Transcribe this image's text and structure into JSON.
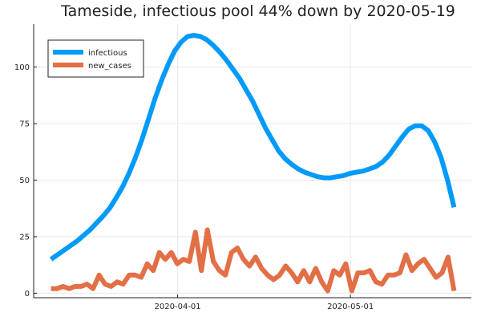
{
  "chart_data": {
    "type": "line",
    "title": "Tameside, infectious pool 44% down by 2020-05-19",
    "xlabel": "",
    "ylabel": "",
    "x_start": "2020-03-10",
    "x_end": "2020-05-19",
    "xlim": [
      "2020-03-07",
      "2020-05-22"
    ],
    "ylim": [
      -2,
      119
    ],
    "x_ticks": [
      {
        "date": "2020-04-01",
        "label": "2020-04-01"
      },
      {
        "date": "2020-05-01",
        "label": "2020-05-01"
      }
    ],
    "y_ticks": [
      {
        "value": 0,
        "label": "0"
      },
      {
        "value": 25,
        "label": "25"
      },
      {
        "value": 50,
        "label": "50"
      },
      {
        "value": 75,
        "label": "75"
      },
      {
        "value": 100,
        "label": "100"
      }
    ],
    "grid": true,
    "legend_position": "top-left",
    "series": [
      {
        "name": "infectious",
        "color": "#009af9",
        "values": [
          15,
          17,
          19,
          21,
          23,
          25.5,
          28,
          31,
          34,
          37.5,
          42,
          47,
          53,
          60,
          68,
          77,
          86,
          94,
          101,
          107,
          111,
          113.5,
          114,
          113.5,
          112,
          109.5,
          106.5,
          103,
          99,
          95,
          90,
          85,
          79,
          73,
          68,
          63,
          59.5,
          57,
          55,
          53.5,
          52.5,
          51.5,
          51,
          51,
          51.5,
          52,
          53,
          53.5,
          54,
          55,
          56,
          58,
          61,
          65,
          69,
          72.5,
          74,
          74,
          72,
          67,
          60,
          50,
          38
        ]
      },
      {
        "name": "new_cases",
        "color": "#e26f46",
        "values": [
          2,
          2,
          3,
          2,
          3,
          3,
          4,
          2,
          8,
          4,
          3,
          5,
          4,
          8,
          8,
          7,
          13,
          10,
          18,
          15,
          18,
          13,
          15,
          14,
          27,
          10,
          28,
          14,
          10,
          8,
          18,
          20,
          15,
          12,
          16,
          11,
          8,
          6,
          8,
          12,
          9,
          5,
          10,
          5,
          11,
          5,
          1,
          10,
          8,
          13,
          1,
          9,
          9,
          10,
          5,
          4,
          8,
          8,
          9,
          17,
          10,
          13,
          15,
          11,
          7,
          9,
          16,
          1
        ]
      }
    ]
  }
}
